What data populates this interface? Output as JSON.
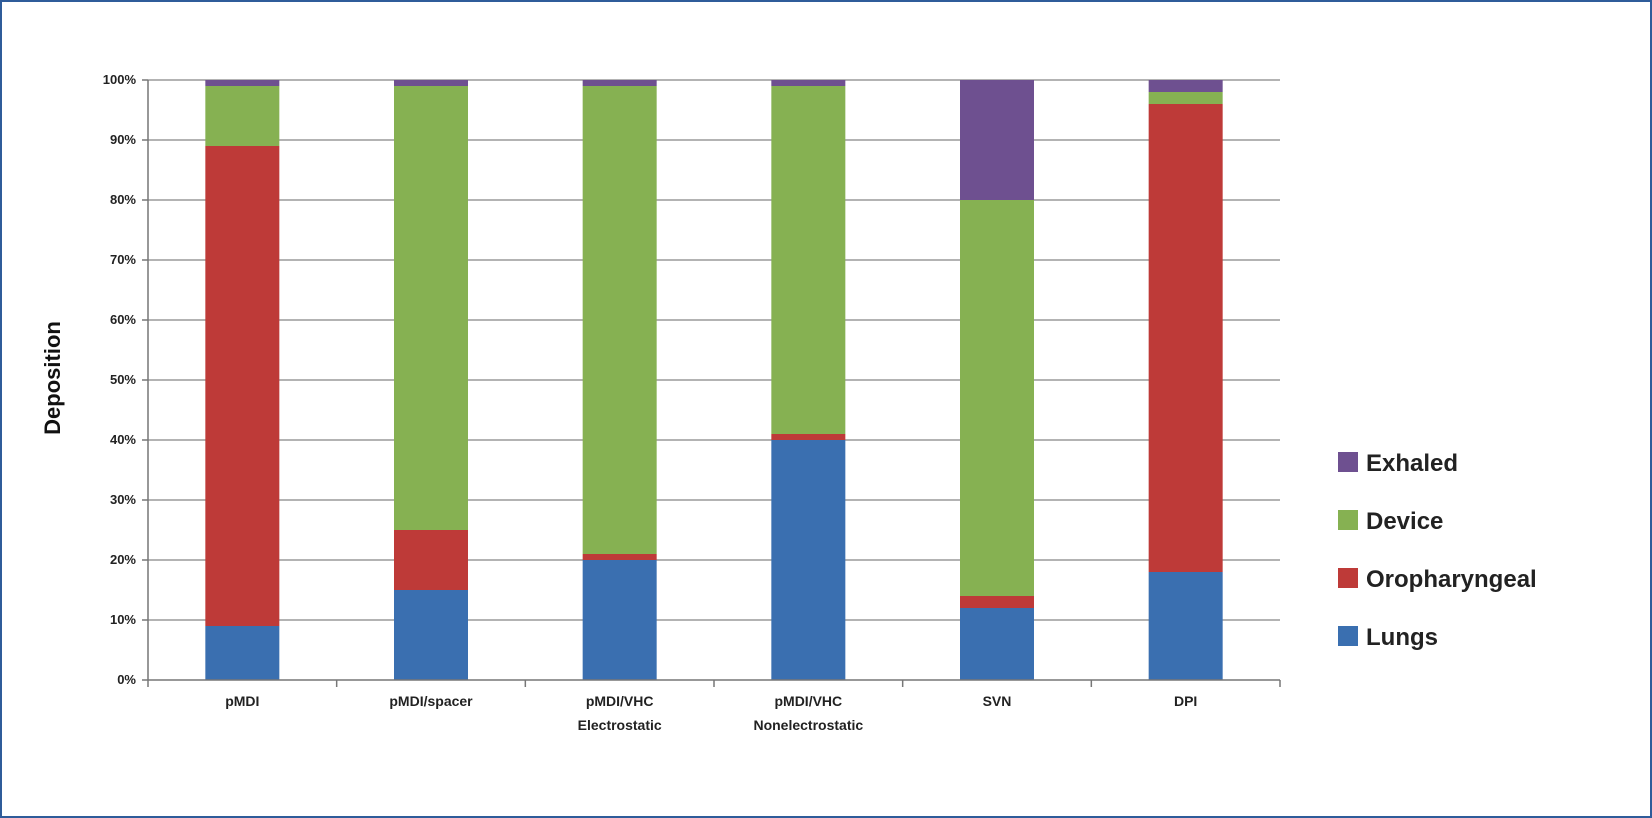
{
  "chart_data": {
    "type": "bar",
    "stacked": true,
    "title": "",
    "xlabel": "",
    "ylabel": "Deposition",
    "ylim": [
      0,
      100
    ],
    "y_ticks": [
      "0%",
      "10%",
      "20%",
      "30%",
      "40%",
      "50%",
      "60%",
      "70%",
      "80%",
      "90%",
      "100%"
    ],
    "grid": true,
    "legend_position": "right",
    "categories": [
      [
        "pMDI"
      ],
      [
        "pMDI/spacer"
      ],
      [
        "pMDI/VHC",
        "Electrostatic"
      ],
      [
        "pMDI/VHC",
        "Nonelectrostatic"
      ],
      [
        "SVN"
      ],
      [
        "DPI"
      ]
    ],
    "series": [
      {
        "name": "Lungs",
        "color": "#3a6fb0",
        "values": [
          9,
          15,
          20,
          40,
          12,
          18
        ]
      },
      {
        "name": "Oropharyngeal",
        "color": "#be3a38",
        "values": [
          80,
          10,
          1,
          1,
          2,
          78
        ]
      },
      {
        "name": "Device",
        "color": "#86b152",
        "values": [
          10,
          74,
          78,
          58,
          66,
          2
        ]
      },
      {
        "name": "Exhaled",
        "color": "#6e5090",
        "values": [
          1,
          1,
          1,
          1,
          20,
          2
        ]
      }
    ],
    "legend_order": [
      "Exhaled",
      "Device",
      "Oropharyngeal",
      "Lungs"
    ]
  }
}
